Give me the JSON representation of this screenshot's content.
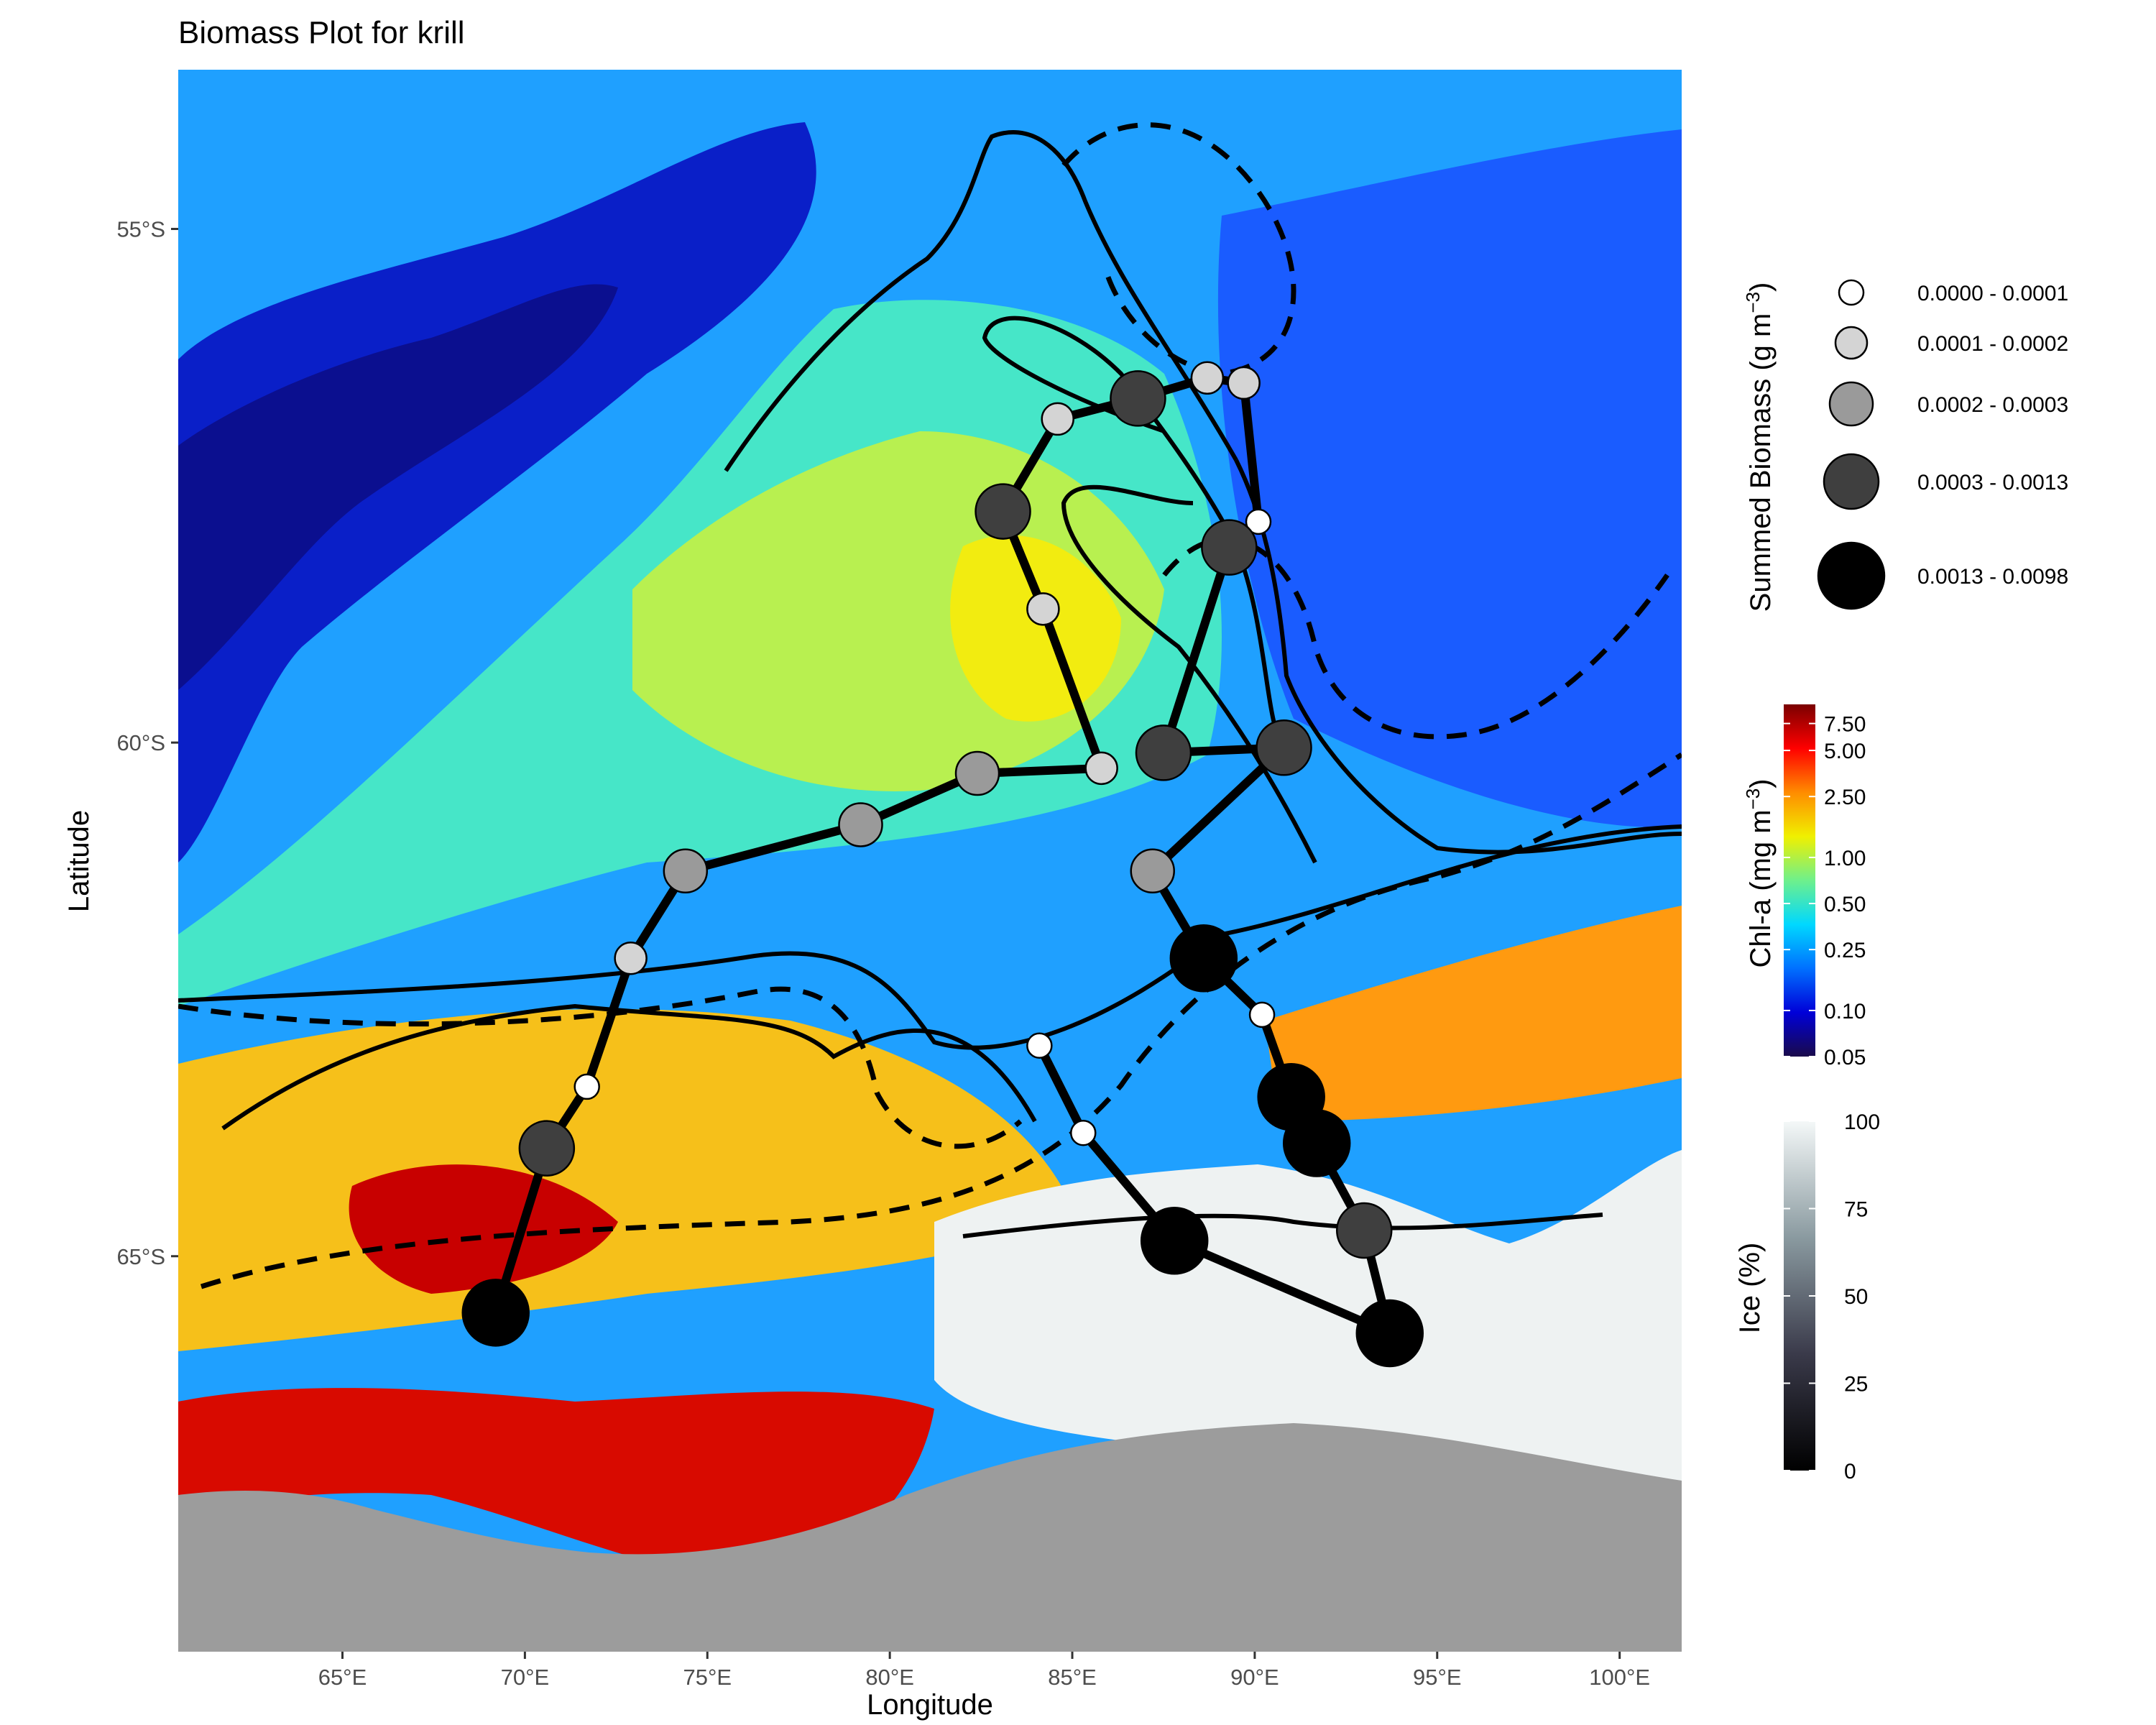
{
  "title": "Biomass Plot for krill",
  "axes": {
    "xlabel": "Longitude",
    "ylabel": "Latitude",
    "x_ticks": [
      {
        "value": 65,
        "label": "65°E"
      },
      {
        "value": 70,
        "label": "70°E"
      },
      {
        "value": 75,
        "label": "75°E"
      },
      {
        "value": 80,
        "label": "80°E"
      },
      {
        "value": 85,
        "label": "85°E"
      },
      {
        "value": 90,
        "label": "90°E"
      },
      {
        "value": 95,
        "label": "95°E"
      },
      {
        "value": 100,
        "label": "100°E"
      }
    ],
    "y_ticks": [
      {
        "value": -55,
        "label": "55°S"
      },
      {
        "value": -60,
        "label": "60°S"
      },
      {
        "value": -65,
        "label": "65°S"
      }
    ],
    "lon_range": [
      60.5,
      101.7
    ],
    "lat_range": [
      -68.85,
      -53.45
    ]
  },
  "legend_biomass": {
    "title": "Summed Biomass (g m",
    "title_exponent": "−3",
    "title_suffix": ")",
    "classes": [
      {
        "label": "0.0000 - 0.0001",
        "fill": "#ffffff"
      },
      {
        "label": "0.0001 - 0.0002",
        "fill": "#d4d4d4"
      },
      {
        "label": "0.0002 - 0.0003",
        "fill": "#9a9a9a"
      },
      {
        "label": "0.0003 - 0.0013",
        "fill": "#3f3f3f"
      },
      {
        "label": "0.0013 - 0.0098",
        "fill": "#000000"
      }
    ]
  },
  "legend_chla": {
    "title": "Chl-a (mg m",
    "title_exponent": "−3",
    "title_suffix": ")",
    "ticks": [
      {
        "value": 7.5,
        "label": "7.50"
      },
      {
        "value": 5.0,
        "label": "5.00"
      },
      {
        "value": 2.5,
        "label": "2.50"
      },
      {
        "value": 1.0,
        "label": "1.00"
      },
      {
        "value": 0.5,
        "label": "0.50"
      },
      {
        "value": 0.25,
        "label": "0.25"
      },
      {
        "value": 0.1,
        "label": "0.10"
      },
      {
        "value": 0.05,
        "label": "0.05"
      }
    ],
    "scale": "log",
    "range": [
      0.05,
      10
    ],
    "colors": [
      "#1a0a4a",
      "#0000d8",
      "#0070ff",
      "#00d8ff",
      "#6ef08c",
      "#f0f000",
      "#ff8c00",
      "#ff0000",
      "#7a0000"
    ]
  },
  "legend_ice": {
    "title": "Ice (%)",
    "ticks": [
      {
        "value": 100,
        "label": "100"
      },
      {
        "value": 75,
        "label": "75"
      },
      {
        "value": 50,
        "label": "50"
      },
      {
        "value": 25,
        "label": "25"
      },
      {
        "value": 0,
        "label": "0"
      }
    ],
    "range": [
      0,
      100
    ],
    "colors": [
      "#000000",
      "#3a3a4a",
      "#8a9aa0",
      "#f4f8f8"
    ]
  },
  "chart_data": {
    "type": "scatter",
    "map": "Chlorophyll-a and sea-ice map with krill biomass stations along ship track",
    "stations": [
      {
        "lon": 69.2,
        "lat": -65.55,
        "class": 4
      },
      {
        "lon": 70.6,
        "lat": -63.95,
        "class": 3
      },
      {
        "lon": 71.7,
        "lat": -63.35,
        "class": 0
      },
      {
        "lon": 72.9,
        "lat": -62.1,
        "class": 1
      },
      {
        "lon": 74.4,
        "lat": -61.25,
        "class": 2
      },
      {
        "lon": 79.2,
        "lat": -60.8,
        "class": 2
      },
      {
        "lon": 82.4,
        "lat": -60.3,
        "class": 2
      },
      {
        "lon": 85.8,
        "lat": -60.25,
        "class": 1
      },
      {
        "lon": 84.2,
        "lat": -58.7,
        "class": 1
      },
      {
        "lon": 83.1,
        "lat": -57.75,
        "class": 3
      },
      {
        "lon": 84.6,
        "lat": -56.85,
        "class": 1
      },
      {
        "lon": 86.8,
        "lat": -56.65,
        "class": 3
      },
      {
        "lon": 88.7,
        "lat": -56.45,
        "class": 1
      },
      {
        "lon": 89.7,
        "lat": -56.5,
        "class": 1
      },
      {
        "lon": 90.1,
        "lat": -57.85,
        "class": 0
      },
      {
        "lon": 89.3,
        "lat": -58.1,
        "class": 3
      },
      {
        "lon": 87.5,
        "lat": -60.1,
        "class": 3
      },
      {
        "lon": 90.8,
        "lat": -60.05,
        "class": 3
      },
      {
        "lon": 87.2,
        "lat": -61.25,
        "class": 2
      },
      {
        "lon": 88.6,
        "lat": -62.1,
        "class": 4
      },
      {
        "lon": 90.2,
        "lat": -62.65,
        "class": 0
      },
      {
        "lon": 84.1,
        "lat": -62.95,
        "class": 0
      },
      {
        "lon": 85.3,
        "lat": -63.8,
        "class": 0
      },
      {
        "lon": 91.0,
        "lat": -63.45,
        "class": 4
      },
      {
        "lon": 91.7,
        "lat": -63.9,
        "class": 4
      },
      {
        "lon": 87.8,
        "lat": -64.85,
        "class": 4
      },
      {
        "lon": 93.0,
        "lat": -64.75,
        "class": 3
      },
      {
        "lon": 93.7,
        "lat": -65.75,
        "class": 4
      }
    ]
  }
}
